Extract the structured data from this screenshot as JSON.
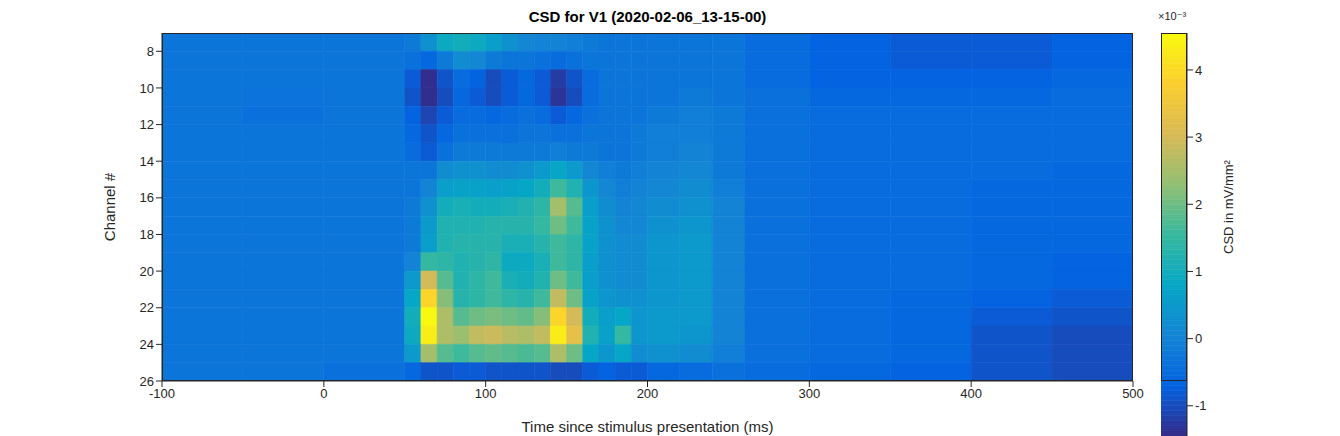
{
  "chart_data": {
    "type": "heatmap",
    "title": "CSD for V1 (2020-02-06_13-15-00)",
    "x_label": "Time since stimulus presentation (ms)",
    "y_label": "Channel #",
    "xlim": [
      -100,
      500
    ],
    "xticks": [
      -100,
      0,
      100,
      200,
      300,
      400,
      500
    ],
    "ylim": [
      7,
      26
    ],
    "yticks": [
      8,
      10,
      12,
      14,
      16,
      18,
      20,
      22,
      24,
      26
    ],
    "x_edges": [
      -100,
      -50,
      0,
      50,
      60,
      70,
      80,
      90,
      100,
      110,
      120,
      130,
      140,
      150,
      160,
      170,
      180,
      190,
      200,
      220,
      240,
      260,
      300,
      350,
      400,
      450,
      500
    ],
    "y_edges": [
      7,
      8,
      9,
      10,
      11,
      12,
      13,
      14,
      15,
      16,
      17,
      18,
      19,
      20,
      21,
      22,
      23,
      24,
      25,
      26
    ],
    "cells": [
      [
        -0.3,
        -0.3,
        -0.3,
        -0.2,
        0.3,
        0.9,
        1.0,
        0.9,
        0.6,
        0.3,
        0.1,
        0.0,
        0.0,
        -0.1,
        -0.2,
        -0.3,
        -0.3,
        -0.3,
        -0.3,
        -0.3,
        -0.3,
        -0.5,
        -0.7,
        -0.8,
        -0.8,
        -0.7
      ],
      [
        -0.3,
        -0.3,
        -0.3,
        -0.4,
        -0.6,
        -0.2,
        0.2,
        0.1,
        -0.2,
        -0.3,
        -0.3,
        -0.4,
        -0.5,
        -0.4,
        -0.3,
        -0.3,
        -0.3,
        -0.3,
        -0.3,
        -0.3,
        -0.3,
        -0.5,
        -0.7,
        -0.8,
        -0.8,
        -0.7
      ],
      [
        -0.3,
        -0.3,
        -0.3,
        -0.8,
        -1.4,
        -0.9,
        -0.5,
        -0.7,
        -1.0,
        -0.8,
        -0.6,
        -0.8,
        -1.2,
        -0.9,
        -0.5,
        -0.3,
        -0.3,
        -0.3,
        -0.3,
        -0.3,
        -0.3,
        -0.5,
        -0.7,
        -0.7,
        -0.7,
        -0.6
      ],
      [
        -0.3,
        -0.35,
        -0.3,
        -0.9,
        -1.4,
        -1.0,
        -0.6,
        -0.8,
        -1.0,
        -0.8,
        -0.6,
        -0.8,
        -1.3,
        -1.0,
        -0.5,
        -0.3,
        -0.3,
        -0.3,
        -0.3,
        -0.2,
        -0.3,
        -0.4,
        -0.6,
        -0.6,
        -0.6,
        -0.5
      ],
      [
        -0.3,
        -0.4,
        -0.3,
        -0.7,
        -1.1,
        -0.8,
        -0.5,
        -0.5,
        -0.6,
        -0.5,
        -0.4,
        -0.5,
        -0.8,
        -0.6,
        -0.4,
        -0.3,
        -0.3,
        -0.3,
        -0.2,
        -0.1,
        -0.2,
        -0.4,
        -0.5,
        -0.5,
        -0.5,
        -0.5
      ],
      [
        -0.3,
        -0.3,
        -0.3,
        -0.6,
        -0.9,
        -0.6,
        -0.4,
        -0.4,
        -0.4,
        -0.4,
        -0.3,
        -0.3,
        -0.4,
        -0.4,
        -0.3,
        -0.3,
        -0.3,
        -0.2,
        -0.1,
        -0.1,
        -0.2,
        -0.4,
        -0.5,
        -0.5,
        -0.5,
        -0.5
      ],
      [
        -0.3,
        -0.3,
        -0.3,
        -0.5,
        -0.8,
        -0.4,
        -0.2,
        -0.2,
        -0.2,
        -0.2,
        -0.2,
        -0.2,
        -0.1,
        -0.2,
        -0.2,
        -0.3,
        -0.3,
        -0.2,
        -0.1,
        0.0,
        -0.2,
        -0.4,
        -0.5,
        -0.5,
        -0.5,
        -0.5
      ],
      [
        -0.3,
        -0.3,
        -0.3,
        -0.3,
        -0.3,
        0.2,
        0.3,
        0.3,
        0.2,
        0.2,
        0.3,
        0.5,
        0.8,
        0.5,
        0.1,
        -0.1,
        -0.2,
        -0.1,
        0.0,
        0.1,
        -0.2,
        -0.4,
        -0.5,
        -0.5,
        -0.5,
        -0.6
      ],
      [
        -0.3,
        -0.3,
        -0.3,
        -0.3,
        0.0,
        0.6,
        0.7,
        0.7,
        0.6,
        0.7,
        0.8,
        1.0,
        1.6,
        1.2,
        0.4,
        0.1,
        -0.1,
        0.0,
        0.1,
        0.2,
        -0.1,
        -0.4,
        -0.5,
        -0.5,
        -0.6,
        -0.6
      ],
      [
        -0.3,
        -0.3,
        -0.3,
        -0.2,
        0.3,
        1.0,
        1.1,
        1.0,
        1.0,
        1.1,
        1.2,
        1.4,
        2.5,
        1.8,
        0.6,
        0.2,
        0.0,
        0.1,
        0.2,
        0.3,
        0.0,
        -0.4,
        -0.5,
        -0.5,
        -0.6,
        -0.6
      ],
      [
        -0.3,
        -0.3,
        -0.3,
        -0.2,
        0.5,
        1.2,
        1.2,
        1.2,
        1.3,
        1.3,
        1.3,
        1.5,
        2.0,
        1.6,
        0.7,
        0.3,
        0.1,
        0.1,
        0.3,
        0.4,
        0.0,
        -0.4,
        -0.5,
        -0.5,
        -0.6,
        -0.6
      ],
      [
        -0.3,
        -0.3,
        -0.3,
        -0.2,
        0.6,
        1.2,
        1.3,
        1.3,
        1.3,
        1.1,
        1.1,
        1.3,
        1.6,
        1.4,
        0.7,
        0.3,
        0.2,
        0.2,
        0.4,
        0.5,
        0.0,
        -0.4,
        -0.5,
        -0.5,
        -0.6,
        -0.6
      ],
      [
        -0.3,
        -0.3,
        -0.3,
        0.0,
        1.5,
        1.4,
        1.2,
        1.3,
        1.4,
        0.9,
        0.9,
        1.1,
        1.6,
        1.4,
        0.6,
        0.3,
        0.2,
        0.2,
        0.4,
        0.5,
        0.0,
        -0.4,
        -0.5,
        -0.5,
        -0.6,
        -0.7
      ],
      [
        -0.3,
        -0.3,
        -0.3,
        0.5,
        3.0,
        1.8,
        1.2,
        1.4,
        1.6,
        1.1,
        1.0,
        1.2,
        2.0,
        1.6,
        0.6,
        0.3,
        0.2,
        0.2,
        0.4,
        0.5,
        0.0,
        -0.4,
        -0.5,
        -0.5,
        -0.6,
        -0.7
      ],
      [
        -0.3,
        -0.3,
        -0.3,
        0.8,
        3.9,
        2.2,
        1.3,
        1.4,
        1.6,
        1.4,
        1.3,
        1.6,
        2.8,
        2.0,
        0.7,
        0.4,
        0.3,
        0.3,
        0.4,
        0.5,
        0.0,
        -0.4,
        -0.5,
        -0.6,
        -0.7,
        -0.8
      ],
      [
        -0.3,
        -0.3,
        -0.3,
        1.0,
        4.5,
        2.6,
        1.8,
        2.0,
        2.1,
        2.0,
        1.9,
        2.2,
        3.9,
        3.0,
        1.0,
        0.6,
        0.8,
        0.4,
        0.5,
        0.5,
        0.0,
        -0.4,
        -0.5,
        -0.6,
        -0.8,
        -0.9
      ],
      [
        -0.3,
        -0.3,
        -0.3,
        0.9,
        4.3,
        2.6,
        2.4,
        2.8,
        2.9,
        2.7,
        2.6,
        2.8,
        4.3,
        3.3,
        1.2,
        0.7,
        1.5,
        0.4,
        0.5,
        0.4,
        0.0,
        -0.4,
        -0.5,
        -0.6,
        -0.9,
        -1.0
      ],
      [
        -0.3,
        -0.3,
        -0.3,
        0.5,
        2.5,
        1.8,
        1.6,
        1.8,
        1.9,
        1.8,
        1.7,
        1.8,
        2.6,
        2.0,
        0.8,
        0.4,
        0.8,
        0.2,
        0.3,
        0.2,
        -0.1,
        -0.4,
        -0.5,
        -0.6,
        -0.9,
        -1.0
      ],
      [
        -0.3,
        -0.3,
        -0.4,
        -0.6,
        -0.9,
        -0.9,
        -0.8,
        -0.8,
        -0.9,
        -0.9,
        -0.9,
        -0.9,
        -1.0,
        -1.0,
        -0.8,
        -0.7,
        -0.8,
        -0.8,
        -0.6,
        -0.5,
        -0.4,
        -0.5,
        -0.6,
        -0.7,
        -0.9,
        -1.0
      ]
    ],
    "colorbar_label": "CSD in mV/mm²",
    "colorbar_multiplier": "×10⁻³",
    "clim": [
      -1.45,
      4.55
    ],
    "colorbar_ticks": [
      -1,
      0,
      1,
      2,
      3,
      4
    ]
  }
}
